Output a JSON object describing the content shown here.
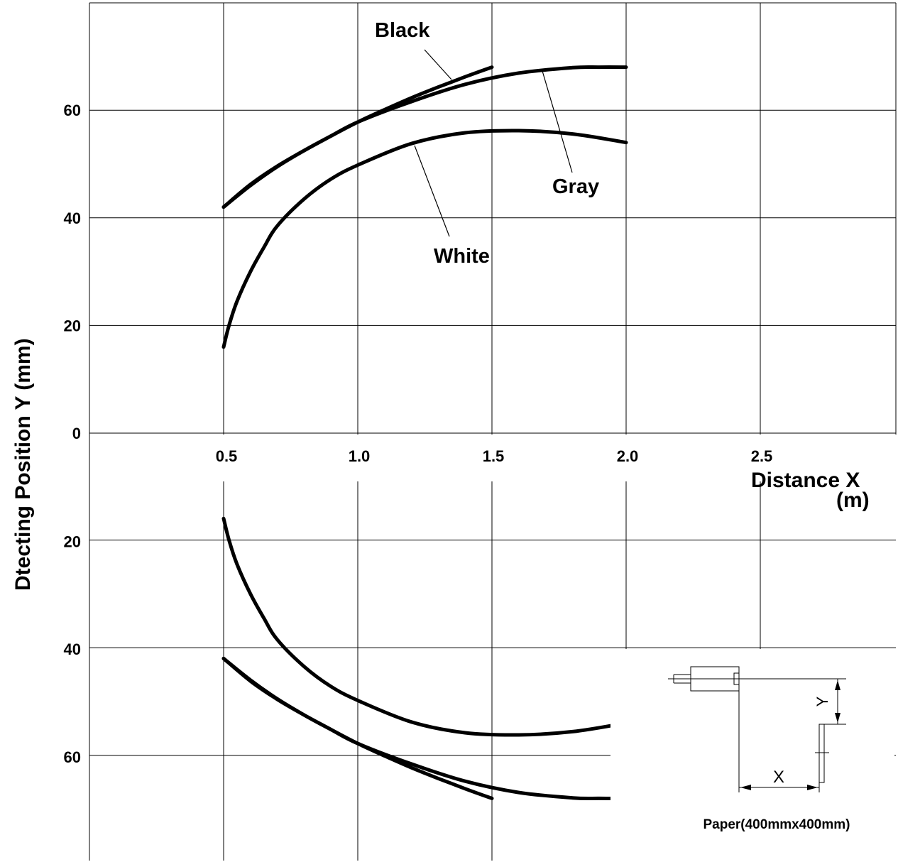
{
  "chart_data": {
    "type": "line",
    "xlabel": "Distance  X",
    "xunit": "(m)",
    "ylabel": "Dtecting Position    Y  (mm)",
    "x_ticks": [
      0.5,
      1.0,
      1.5,
      2.0,
      2.5
    ],
    "x_tick_labels": [
      "0.5",
      "1.0",
      "1.5",
      "2.0",
      "2.5"
    ],
    "y_ticks_upper": [
      "60",
      "40",
      "20",
      "0"
    ],
    "y_ticks_lower": [
      "20",
      "40",
      "60"
    ],
    "xlim": [
      0,
      3.0
    ],
    "ylim": [
      -80,
      80
    ],
    "grid": true,
    "series": [
      {
        "name": "Black",
        "x": [
          0.5,
          0.6,
          0.7,
          0.8,
          0.9,
          1.0,
          1.1,
          1.2,
          1.3,
          1.4,
          1.5
        ],
        "y": [
          42,
          46.2,
          49.6,
          52.5,
          55.2,
          57.8,
          60.1,
          62.3,
          64.3,
          66.2,
          68
        ]
      },
      {
        "name": "Gray",
        "x": [
          0.5,
          0.6,
          0.7,
          0.8,
          0.9,
          1.0,
          1.2,
          1.4,
          1.6,
          1.8,
          1.9,
          2.0
        ],
        "y": [
          42,
          46,
          49.5,
          52.5,
          55.2,
          57.8,
          61.6,
          64.8,
          66.9,
          67.9,
          68,
          68
        ]
      },
      {
        "name": "White",
        "x": [
          0.5,
          0.52,
          0.55,
          0.6,
          0.65,
          0.7,
          0.8,
          0.9,
          1.0,
          1.2,
          1.4,
          1.6,
          1.8,
          2.0
        ],
        "y": [
          16,
          20,
          24.5,
          30,
          34.5,
          38.5,
          43.5,
          47.2,
          49.8,
          53.8,
          55.8,
          56.2,
          55.6,
          54
        ]
      }
    ],
    "annotations": [
      {
        "text": "Black"
      },
      {
        "text": "Gray"
      },
      {
        "text": "White"
      }
    ],
    "inset": {
      "caption": "Paper(400mmx400mm)",
      "x_label": "X",
      "y_label": "Y"
    }
  }
}
